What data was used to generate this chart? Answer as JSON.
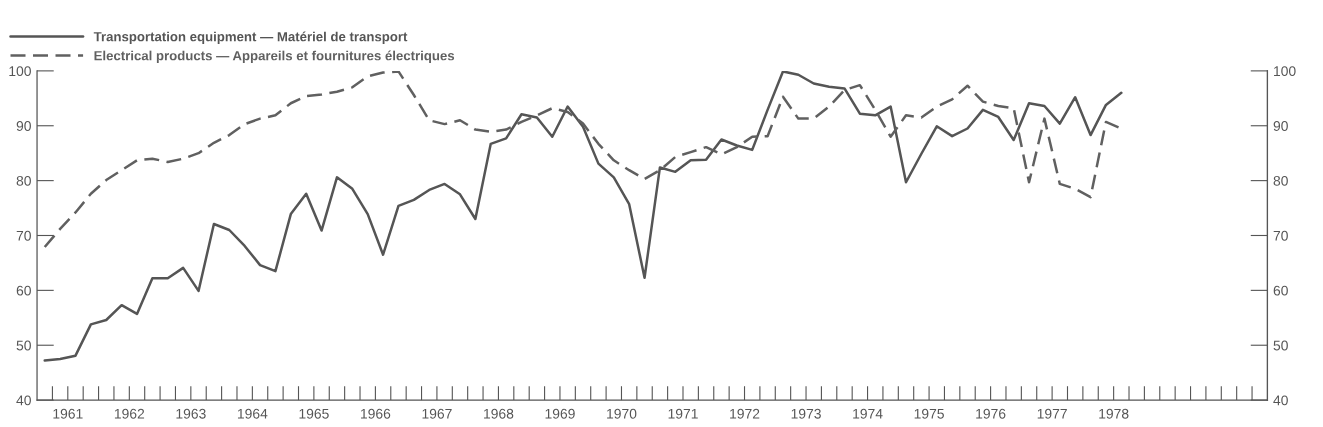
{
  "chart_data": {
    "type": "line",
    "x": [
      1961.125,
      1961.375,
      1961.625,
      1961.875,
      1962.125,
      1962.375,
      1962.625,
      1962.875,
      1963.125,
      1963.375,
      1963.625,
      1963.875,
      1964.125,
      1964.375,
      1964.625,
      1964.875,
      1965.125,
      1965.375,
      1965.625,
      1965.875,
      1966.125,
      1966.375,
      1966.625,
      1966.875,
      1967.125,
      1967.375,
      1967.625,
      1967.875,
      1968.125,
      1968.375,
      1968.625,
      1968.875,
      1969.125,
      1969.375,
      1969.625,
      1969.875,
      1970.125,
      1970.375,
      1970.625,
      1970.875,
      1971.125,
      1971.375,
      1971.625,
      1971.875,
      1972.125,
      1972.375,
      1972.625,
      1972.875,
      1973.125,
      1973.375,
      1973.625,
      1973.875,
      1974.125,
      1974.375,
      1974.625,
      1974.875,
      1975.125,
      1975.375,
      1975.625,
      1975.875,
      1976.125,
      1976.375,
      1976.625,
      1976.875,
      1977.125,
      1977.375,
      1977.625,
      1977.875,
      1978.125,
      1978.375,
      1978.625
    ],
    "series": [
      {
        "name": "Transportation equipment — Matériel de transport",
        "color": "#555555",
        "line_style": "solid",
        "values": [
          47.2,
          47.5,
          48.1,
          53.8,
          54.6,
          57.3,
          55.7,
          62.2,
          62.2,
          64.1,
          59.9,
          72.1,
          71.0,
          68.1,
          64.6,
          63.5,
          73.9,
          77.6,
          70.9,
          80.6,
          78.5,
          73.9,
          66.5,
          75.4,
          76.5,
          78.3,
          79.4,
          77.5,
          73.0,
          86.7,
          87.7,
          92.1,
          91.5,
          88.0,
          93.5,
          89.8,
          83.1,
          80.6,
          75.7,
          62.3,
          82.4,
          81.6,
          83.7,
          83.8,
          87.5,
          86.4,
          85.6,
          92.9,
          99.9,
          99.3,
          97.7,
          97.1,
          96.8,
          92.2,
          91.9,
          93.5,
          79.7,
          84.9,
          89.9,
          88.1,
          89.5,
          92.9,
          91.6,
          87.4,
          94.1,
          93.6,
          90.4,
          95.2,
          88.3,
          93.8,
          96.0
        ]
      },
      {
        "name": "Electrical products — Appareils et fournitures électriques",
        "color": "#606060",
        "line_style": "dashed",
        "values": [
          67.9,
          71.2,
          74.2,
          77.6,
          80.1,
          81.9,
          83.7,
          84.0,
          83.4,
          84.0,
          85.0,
          86.9,
          88.3,
          90.3,
          91.3,
          91.9,
          94.1,
          95.4,
          95.7,
          96.2,
          97.0,
          99.0,
          99.7,
          99.9,
          95.6,
          91.0,
          90.3,
          91.0,
          89.3,
          88.9,
          89.3,
          90.7,
          91.9,
          93.2,
          92.5,
          90.4,
          86.7,
          83.7,
          81.9,
          80.3,
          81.9,
          84.3,
          85.2,
          86.1,
          84.8,
          86.1,
          88.0,
          88.1,
          95.3,
          91.3,
          91.3,
          93.5,
          96.5,
          97.4,
          92.9,
          88.0,
          91.9,
          91.5,
          93.5,
          94.8,
          97.3,
          94.4,
          93.6,
          93.2,
          79.7,
          91.3,
          79.4,
          78.5,
          77.0,
          90.7,
          89.5
        ]
      }
    ],
    "xlim": [
      1961,
      1981
    ],
    "xticks": [
      {
        "value": 1961.25,
        "label": null
      },
      {
        "value": 1961.5,
        "label": "1961"
      },
      {
        "value": 1961.75,
        "label": null
      },
      {
        "value": 1962,
        "label": null
      },
      {
        "value": 1962.25,
        "label": null
      },
      {
        "value": 1962.5,
        "label": "1962"
      },
      {
        "value": 1962.75,
        "label": null
      },
      {
        "value": 1963,
        "label": null
      },
      {
        "value": 1963.25,
        "label": null
      },
      {
        "value": 1963.5,
        "label": "1963"
      },
      {
        "value": 1963.75,
        "label": null
      },
      {
        "value": 1964,
        "label": null
      },
      {
        "value": 1964.25,
        "label": null
      },
      {
        "value": 1964.5,
        "label": "1964"
      },
      {
        "value": 1964.75,
        "label": null
      },
      {
        "value": 1965,
        "label": null
      },
      {
        "value": 1965.25,
        "label": null
      },
      {
        "value": 1965.5,
        "label": "1965"
      },
      {
        "value": 1965.75,
        "label": null
      },
      {
        "value": 1966,
        "label": null
      },
      {
        "value": 1966.25,
        "label": null
      },
      {
        "value": 1966.5,
        "label": "1966"
      },
      {
        "value": 1966.75,
        "label": null
      },
      {
        "value": 1967,
        "label": null
      },
      {
        "value": 1967.25,
        "label": null
      },
      {
        "value": 1967.5,
        "label": "1967"
      },
      {
        "value": 1967.75,
        "label": null
      },
      {
        "value": 1968,
        "label": null
      },
      {
        "value": 1968.25,
        "label": null
      },
      {
        "value": 1968.5,
        "label": "1968"
      },
      {
        "value": 1968.75,
        "label": null
      },
      {
        "value": 1969,
        "label": null
      },
      {
        "value": 1969.25,
        "label": null
      },
      {
        "value": 1969.5,
        "label": "1969"
      },
      {
        "value": 1969.75,
        "label": null
      },
      {
        "value": 1970,
        "label": null
      },
      {
        "value": 1970.25,
        "label": null
      },
      {
        "value": 1970.5,
        "label": "1970"
      },
      {
        "value": 1970.75,
        "label": null
      },
      {
        "value": 1971,
        "label": null
      },
      {
        "value": 1971.25,
        "label": null
      },
      {
        "value": 1971.5,
        "label": "1971"
      },
      {
        "value": 1971.75,
        "label": null
      },
      {
        "value": 1972,
        "label": null
      },
      {
        "value": 1972.25,
        "label": null
      },
      {
        "value": 1972.5,
        "label": "1972"
      },
      {
        "value": 1972.75,
        "label": null
      },
      {
        "value": 1973,
        "label": null
      },
      {
        "value": 1973.25,
        "label": null
      },
      {
        "value": 1973.5,
        "label": "1973"
      },
      {
        "value": 1973.75,
        "label": null
      },
      {
        "value": 1974,
        "label": null
      },
      {
        "value": 1974.25,
        "label": null
      },
      {
        "value": 1974.5,
        "label": "1974"
      },
      {
        "value": 1974.75,
        "label": null
      },
      {
        "value": 1975,
        "label": null
      },
      {
        "value": 1975.25,
        "label": null
      },
      {
        "value": 1975.5,
        "label": "1975"
      },
      {
        "value": 1975.75,
        "label": null
      },
      {
        "value": 1976,
        "label": null
      },
      {
        "value": 1976.25,
        "label": null
      },
      {
        "value": 1976.5,
        "label": "1976"
      },
      {
        "value": 1976.75,
        "label": null
      },
      {
        "value": 1977,
        "label": null
      },
      {
        "value": 1977.25,
        "label": null
      },
      {
        "value": 1977.5,
        "label": "1977"
      },
      {
        "value": 1977.75,
        "label": null
      },
      {
        "value": 1978,
        "label": null
      },
      {
        "value": 1978.25,
        "label": null
      },
      {
        "value": 1978.5,
        "label": "1978"
      },
      {
        "value": 1978.75,
        "label": null
      },
      {
        "value": 1979,
        "label": null
      },
      {
        "value": 1979.25,
        "label": null
      },
      {
        "value": 1979.5,
        "label": null
      },
      {
        "value": 1979.75,
        "label": null
      },
      {
        "value": 1980,
        "label": null
      },
      {
        "value": 1980.25,
        "label": null
      },
      {
        "value": 1980.5,
        "label": null
      },
      {
        "value": 1980.75,
        "label": null
      }
    ],
    "ylim": [
      40,
      100
    ],
    "yticks": [
      40,
      50,
      60,
      70,
      80,
      90,
      100
    ],
    "y2lim": [
      40,
      100
    ],
    "y2ticks": [
      40,
      50,
      60,
      70,
      80,
      90,
      100
    ],
    "grid": false,
    "legend": "top left",
    "marker": "none"
  }
}
